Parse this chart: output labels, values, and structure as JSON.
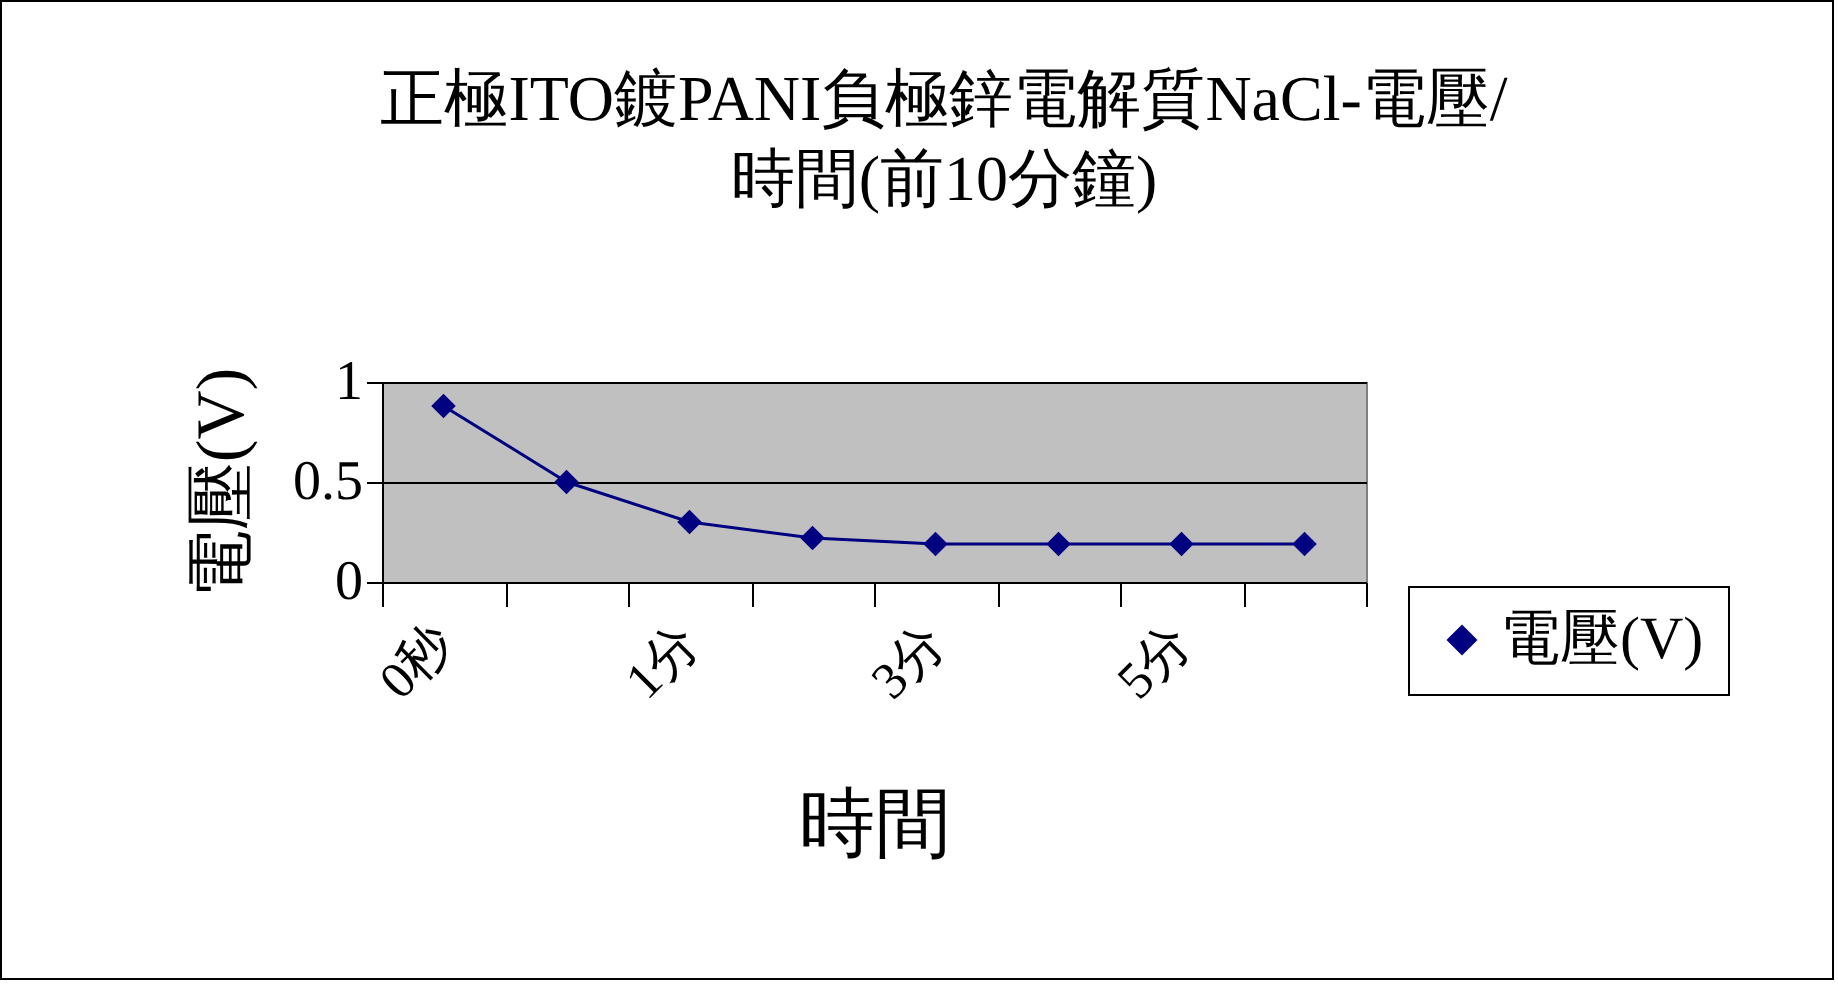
{
  "chart_data": {
    "type": "line",
    "title": "正極ITO鍍PANI負極鋅電解質NaCl-電壓/時間(前10分鐘)",
    "xlabel": "時間",
    "ylabel": "電壓(V)",
    "categories": [
      "0秒",
      null,
      "1分",
      null,
      "3分",
      null,
      "5分",
      null
    ],
    "series": [
      {
        "name": "電壓(V)",
        "color": "#000080",
        "values": [
          0.88,
          0.5,
          0.3,
          0.22,
          0.19,
          0.19,
          0.19,
          0.19
        ]
      }
    ],
    "ylim": [
      0,
      1
    ],
    "yticks": [
      0,
      0.5,
      1
    ],
    "grid": "y",
    "legend": "right",
    "marker": "diamond",
    "line_style": "solid"
  }
}
